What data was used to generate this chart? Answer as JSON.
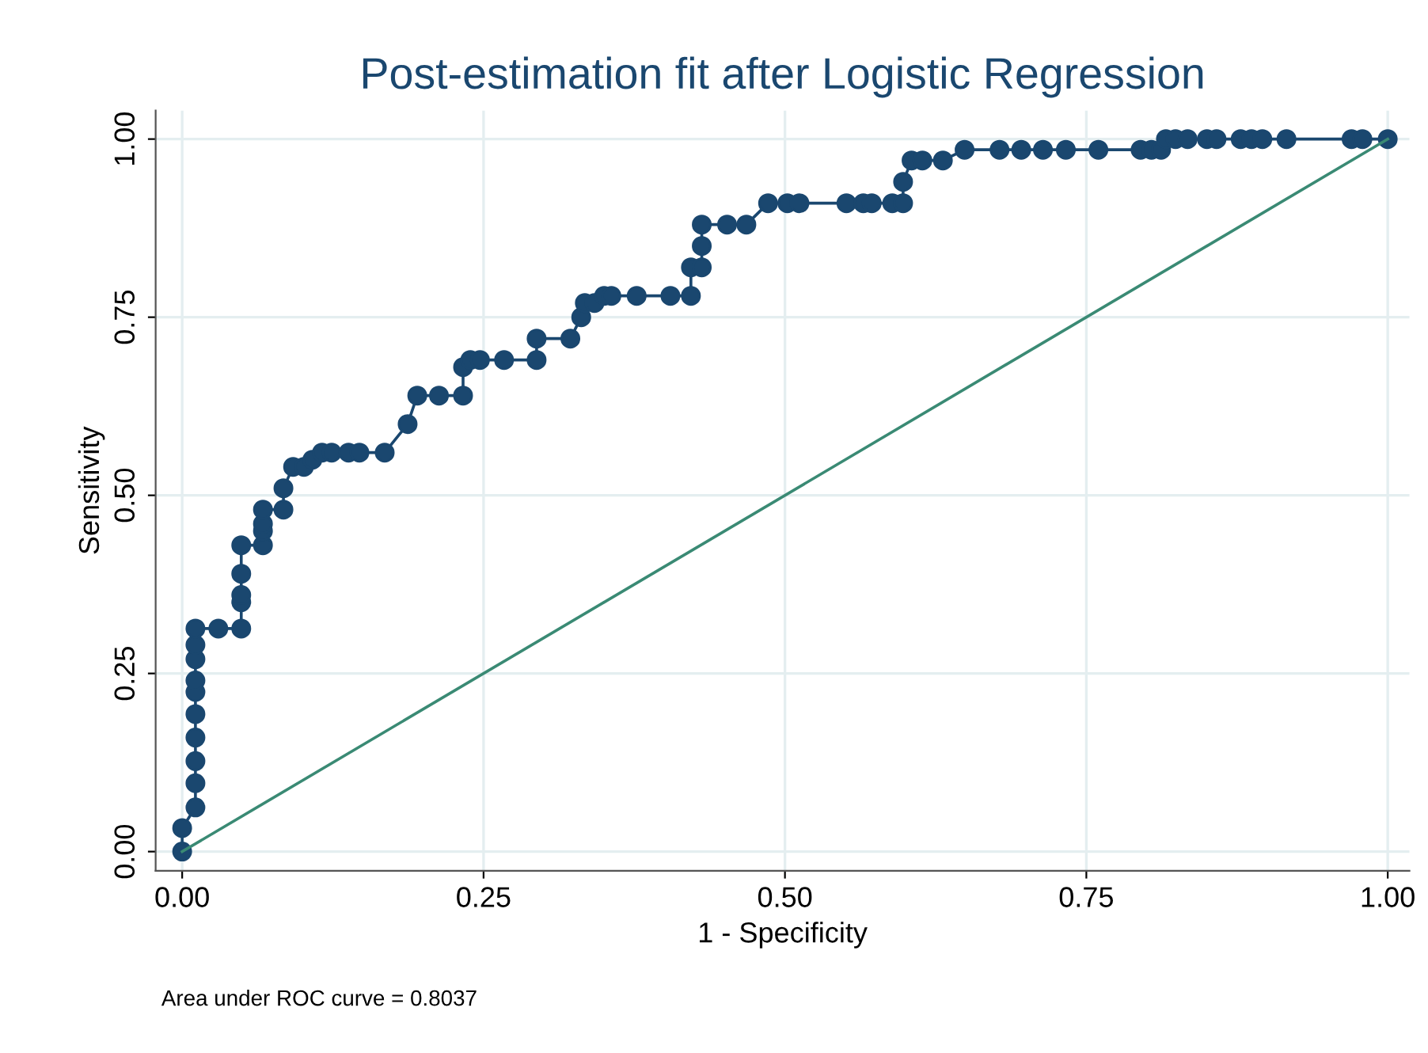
{
  "chart_data": {
    "type": "line",
    "title": "Post-estimation fit after Logistic Regression",
    "xlabel": "1 - Specificity",
    "ylabel": "Sensitivity",
    "annotations": [
      "Area under ROC curve = 0.8037"
    ],
    "xlim": [
      -0.022,
      1.018
    ],
    "ylim": [
      -0.027,
      1.04
    ],
    "xticks": [
      {
        "value": 0,
        "label": "0.00"
      },
      {
        "value": 0.25,
        "label": "0.25"
      },
      {
        "value": 0.5,
        "label": "0.50"
      },
      {
        "value": 0.75,
        "label": "0.75"
      },
      {
        "value": 1,
        "label": "1.00"
      }
    ],
    "yticks": [
      {
        "value": 0,
        "label": "0.00"
      },
      {
        "value": 0.25,
        "label": "0.25"
      },
      {
        "value": 0.5,
        "label": "0.50"
      },
      {
        "value": 0.75,
        "label": "0.75"
      },
      {
        "value": 1,
        "label": "1.00"
      }
    ],
    "grid": true,
    "series": [
      {
        "color": "#1a476f",
        "marker": "circle",
        "line_style": "solid",
        "x": [
          0,
          0,
          0.011,
          0.011,
          0.011,
          0.011,
          0.011,
          0.011,
          0.011,
          0.011,
          0.011,
          0.011,
          0.03,
          0.049,
          0.049,
          0.049,
          0.049,
          0.049,
          0.067,
          0.067,
          0.067,
          0.067,
          0.084,
          0.084,
          0.092,
          0.101,
          0.108,
          0.116,
          0.124,
          0.138,
          0.147,
          0.168,
          0.187,
          0.195,
          0.213,
          0.233,
          0.233,
          0.239,
          0.247,
          0.267,
          0.294,
          0.294,
          0.322,
          0.331,
          0.334,
          0.342,
          0.35,
          0.356,
          0.377,
          0.405,
          0.422,
          0.422,
          0.431,
          0.431,
          0.431,
          0.452,
          0.468,
          0.486,
          0.502,
          0.512,
          0.551,
          0.565,
          0.572,
          0.589,
          0.598,
          0.598,
          0.605,
          0.614,
          0.631,
          0.649,
          0.678,
          0.696,
          0.714,
          0.733,
          0.76,
          0.795,
          0.804,
          0.812,
          0.816,
          0.824,
          0.834,
          0.85,
          0.858,
          0.878,
          0.887,
          0.896,
          0.916,
          0.97,
          0.979,
          1
        ],
        "values": [
          0,
          0.033,
          0.062,
          0.096,
          0.127,
          0.16,
          0.193,
          0.224,
          0.24,
          0.27,
          0.29,
          0.313,
          0.313,
          0.313,
          0.35,
          0.36,
          0.39,
          0.43,
          0.43,
          0.45,
          0.46,
          0.48,
          0.48,
          0.51,
          0.54,
          0.54,
          0.55,
          0.56,
          0.56,
          0.56,
          0.56,
          0.56,
          0.6,
          0.64,
          0.64,
          0.64,
          0.68,
          0.69,
          0.69,
          0.69,
          0.69,
          0.72,
          0.72,
          0.75,
          0.77,
          0.77,
          0.78,
          0.78,
          0.78,
          0.78,
          0.78,
          0.82,
          0.82,
          0.85,
          0.88,
          0.88,
          0.88,
          0.91,
          0.91,
          0.91,
          0.91,
          0.91,
          0.91,
          0.91,
          0.91,
          0.94,
          0.97,
          0.97,
          0.97,
          0.985,
          0.985,
          0.985,
          0.985,
          0.985,
          0.985,
          0.985,
          0.985,
          0.985,
          1,
          1,
          1,
          1,
          1,
          1,
          1,
          1,
          1,
          1,
          1,
          1
        ]
      },
      {
        "color": "#3a8a74",
        "marker": "none",
        "line_style": "solid",
        "x": [
          0,
          1
        ],
        "values": [
          0,
          1
        ]
      }
    ]
  }
}
